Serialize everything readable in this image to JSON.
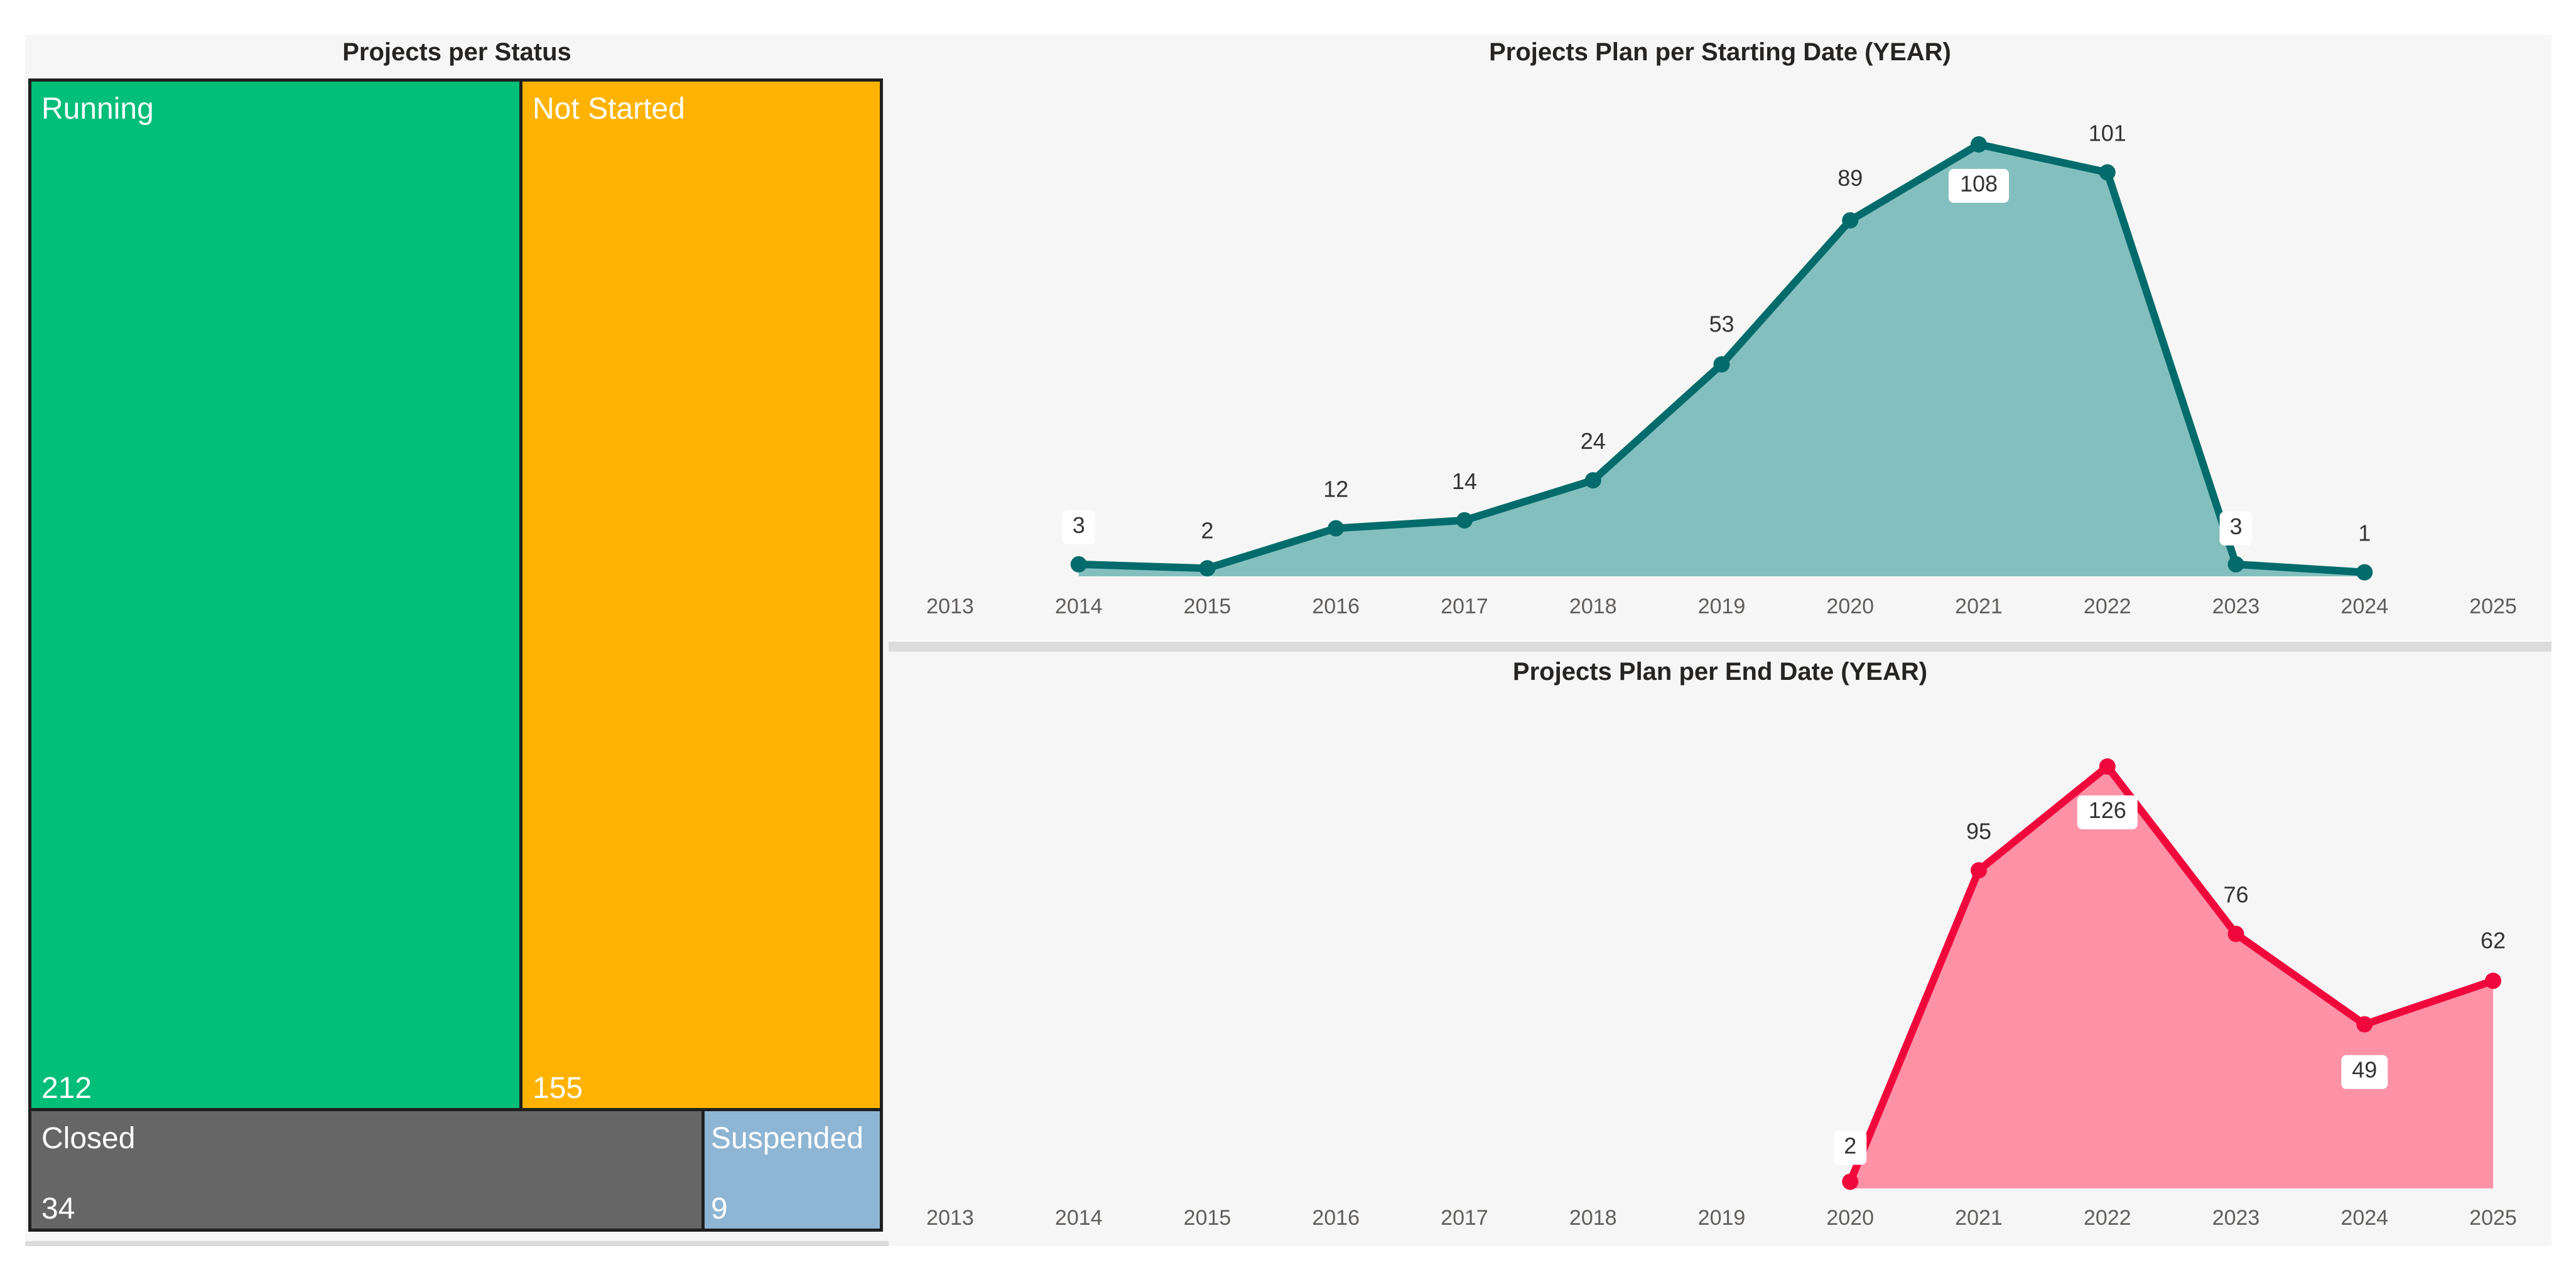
{
  "treemap": {
    "title": "Projects per Status",
    "tiles": [
      {
        "label": "Running",
        "value": "212",
        "color": "#01BE78"
      },
      {
        "label": "Not Started",
        "value": "155",
        "color": "#FFB300"
      },
      {
        "label": "Closed",
        "value": "34",
        "color": "#666666"
      },
      {
        "label": "Suspended",
        "value": "9",
        "color": "#8EB5D3"
      }
    ]
  },
  "start_chart": {
    "title": "Projects Plan per Starting Date (YEAR)"
  },
  "end_chart": {
    "title": "Projects Plan per End Date (YEAR)"
  },
  "chart_data": [
    {
      "type": "area",
      "title": "Projects Plan per Starting Date (YEAR)",
      "categories": [
        "2013",
        "2014",
        "2015",
        "2016",
        "2017",
        "2018",
        "2019",
        "2020",
        "2021",
        "2022",
        "2023",
        "2024",
        "2025"
      ],
      "x": [
        2014,
        2015,
        2016,
        2017,
        2018,
        2019,
        2020,
        2021,
        2022,
        2023,
        2024
      ],
      "values": [
        3,
        2,
        12,
        14,
        24,
        53,
        89,
        108,
        101,
        3,
        1
      ],
      "labels": [
        "3",
        "2",
        "12",
        "14",
        "24",
        "53",
        "89",
        "108",
        "101",
        "3",
        "1"
      ],
      "boxed_labels": [
        "108",
        "3"
      ],
      "xlim": [
        2013,
        2025
      ],
      "ylim": [
        0,
        108
      ],
      "line_color": "#036B6B",
      "fill_color": "#84BFBF",
      "xlabel": "",
      "ylabel": ""
    },
    {
      "type": "area",
      "title": "Projects Plan per End Date (YEAR)",
      "categories": [
        "2013",
        "2014",
        "2015",
        "2016",
        "2017",
        "2018",
        "2019",
        "2020",
        "2021",
        "2022",
        "2023",
        "2024",
        "2025"
      ],
      "x": [
        2020,
        2021,
        2022,
        2023,
        2024,
        2025
      ],
      "values": [
        2,
        95,
        126,
        76,
        49,
        62
      ],
      "labels": [
        "2",
        "95",
        "126",
        "76",
        "49",
        "62"
      ],
      "boxed_labels": [
        "2",
        "126",
        "49"
      ],
      "xlim": [
        2013,
        2025
      ],
      "ylim": [
        0,
        126
      ],
      "line_color": "#F0083C",
      "fill_color": "#FD91A6",
      "xlabel": "",
      "ylabel": ""
    }
  ]
}
